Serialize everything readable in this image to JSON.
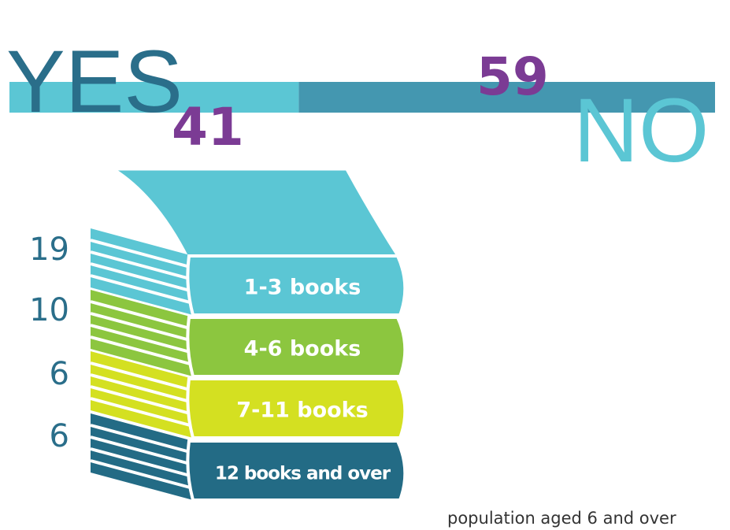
{
  "yes": {
    "label": "YES",
    "value": 41
  },
  "no": {
    "label": "NO",
    "value": 59
  },
  "books": [
    {
      "label": "1-3 books",
      "value": 19
    },
    {
      "label": "4-6 books",
      "value": 10
    },
    {
      "label": "7-11 books",
      "value": 6
    },
    {
      "label": "12 books and over",
      "value": 6
    }
  ],
  "note": "population aged 6 and over"
}
